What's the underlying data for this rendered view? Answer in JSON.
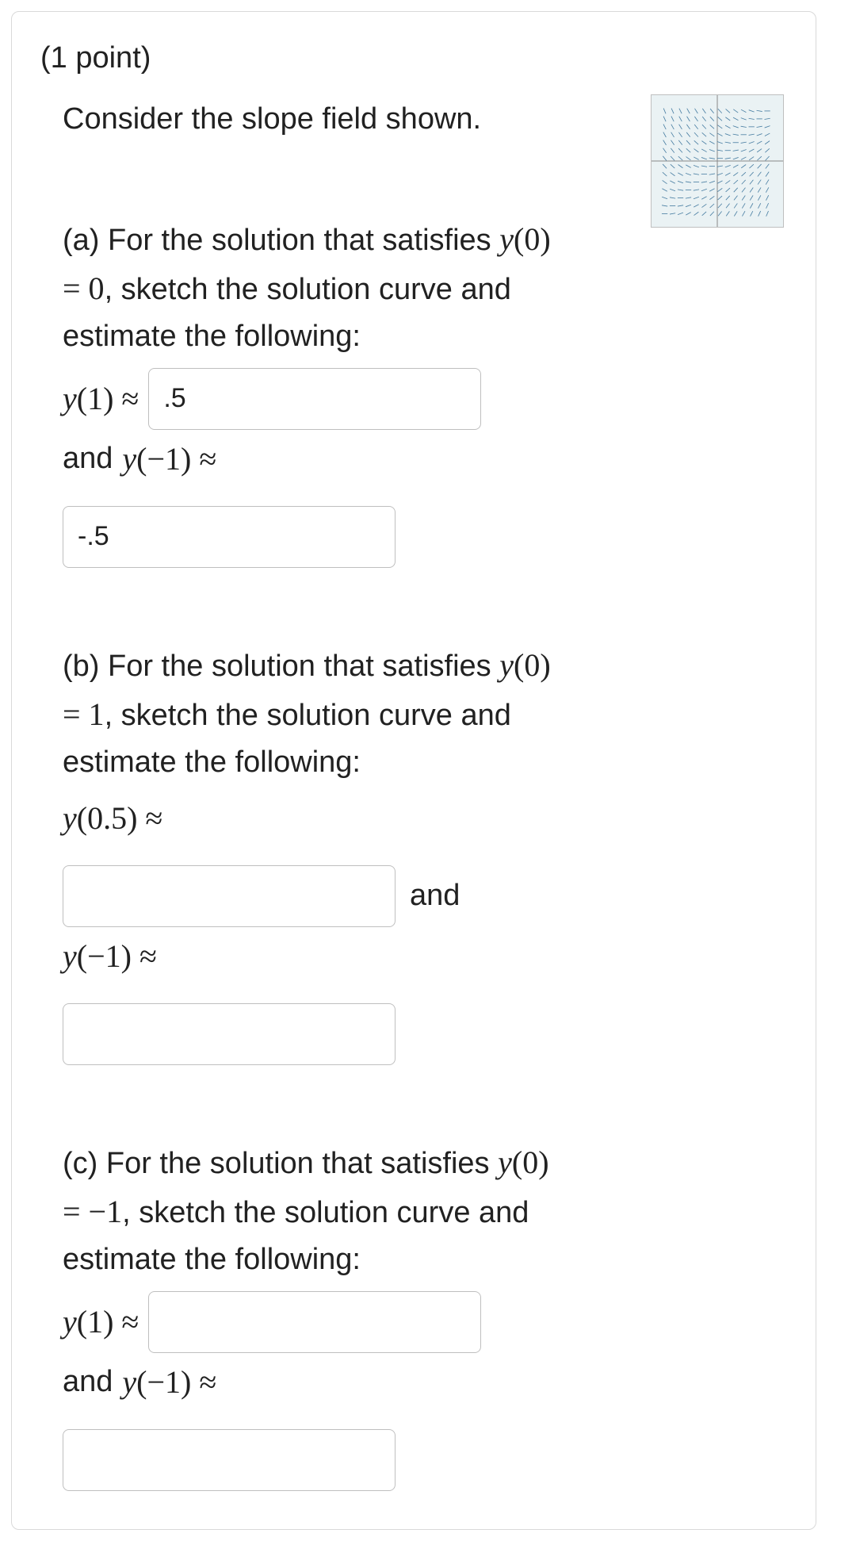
{
  "points_label": "(1 point)",
  "intro": "Consider the slope field shown.",
  "slope_field": {
    "background_color": "#eaf2f4",
    "axis_color": "#888888",
    "arrow_color": "#4a7fa3",
    "grid_extent": 4,
    "step": 0.6
  },
  "parts": {
    "a": {
      "prompt_pre": "(a) For the solution that satisfies ",
      "cond_math": "y(0) = 0",
      "prompt_post": ", sketch the solution curve and estimate the following:",
      "q1_math": "y(1) ≈",
      "q1_value": ".5",
      "between": "and ",
      "q2_math": "y(−1) ≈",
      "q2_value": "-.5"
    },
    "b": {
      "prompt_pre": "(b) For the solution that satisfies ",
      "cond_math": "y(0) = 1",
      "prompt_post": ", sketch the solution curve and estimate the following:",
      "q1_math": "y(0.5) ≈",
      "q1_value": "",
      "between": "and",
      "q2_math": "y(−1) ≈",
      "q2_value": ""
    },
    "c": {
      "prompt_pre": "(c) For the solution that satisfies ",
      "cond_math": "y(0) = −1",
      "prompt_post": ", sketch the solution curve and estimate the following:",
      "q1_math": "y(1) ≈",
      "q1_value": "",
      "between": "and ",
      "q2_math": "y(−1) ≈",
      "q2_value": ""
    }
  }
}
